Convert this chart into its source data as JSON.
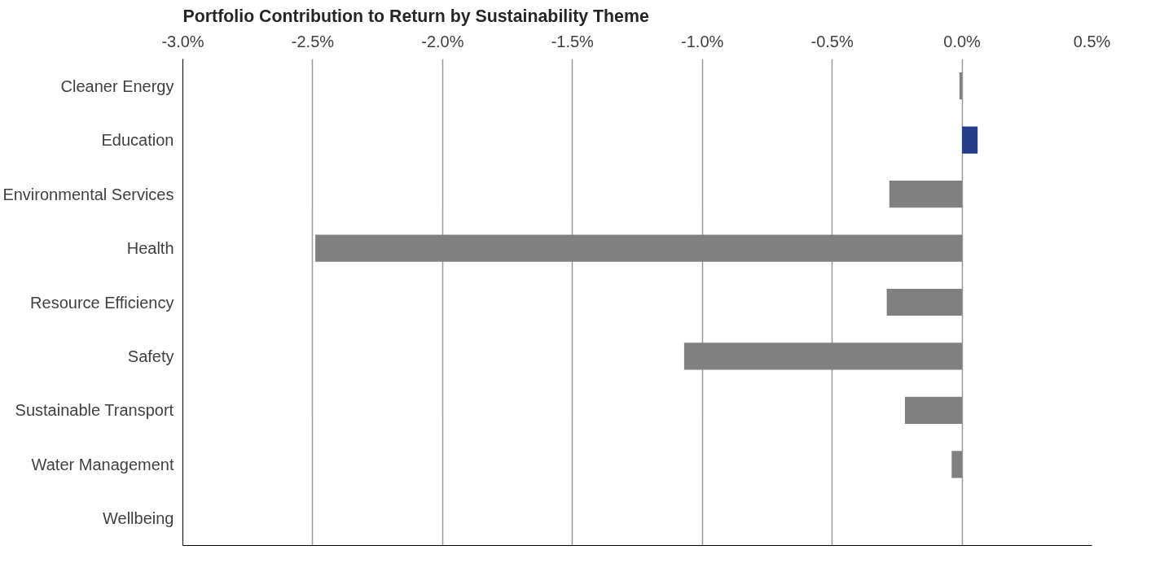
{
  "chart_data": {
    "type": "bar",
    "orientation": "horizontal",
    "title": "Portfolio Contribution to Return by Sustainability Theme",
    "categories": [
      "Cleaner Energy",
      "Education",
      "Environmental Services",
      "Health",
      "Resource Efficiency",
      "Safety",
      "Sustainable Transport",
      "Water Management",
      "Wellbeing"
    ],
    "values": [
      -0.01,
      0.06,
      -0.28,
      -2.49,
      -0.29,
      -1.07,
      -0.22,
      -0.04,
      null
    ],
    "colors": [
      "#808080",
      "#253c8a",
      "#808080",
      "#808080",
      "#808080",
      "#808080",
      "#808080",
      "#808080",
      "#808080"
    ],
    "xlim": [
      -3.0,
      0.5
    ],
    "xticks": [
      {
        "value": -3.0,
        "label": "-3.0%"
      },
      {
        "value": -2.5,
        "label": "-2.5%"
      },
      {
        "value": -2.0,
        "label": "-2.0%"
      },
      {
        "value": -1.5,
        "label": "-1.5%"
      },
      {
        "value": -1.0,
        "label": "-1.0%"
      },
      {
        "value": -0.5,
        "label": "-0.5%"
      },
      {
        "value": 0.0,
        "label": "0.0%"
      },
      {
        "value": 0.5,
        "label": "0.5%"
      }
    ],
    "grid": "x"
  }
}
